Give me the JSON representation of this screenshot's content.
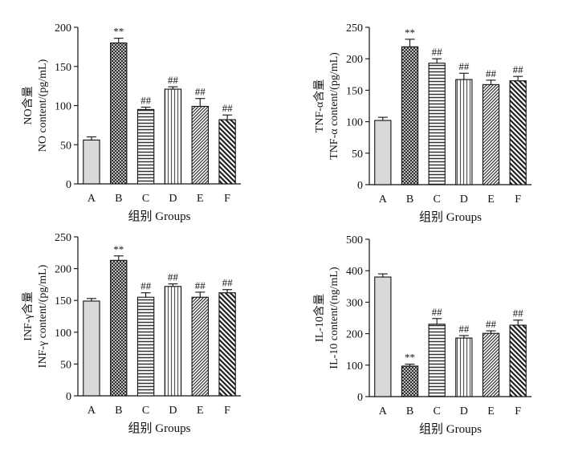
{
  "chart_data": [
    {
      "type": "bar",
      "categories": [
        "A",
        "B",
        "C",
        "D",
        "E",
        "F"
      ],
      "values": [
        56,
        180,
        95,
        121,
        99,
        82
      ],
      "errors": [
        4,
        6,
        3,
        3,
        10,
        6
      ],
      "annotations": [
        "",
        "**",
        "##",
        "##",
        "##",
        "##"
      ],
      "ylabel_cn": "NO含量",
      "ylabel_en": "NO content/(pg/mL)",
      "xlabel": "组别 Groups",
      "ylim": [
        0,
        200
      ],
      "yticks": [
        0,
        50,
        100,
        150,
        200
      ]
    },
    {
      "type": "bar",
      "categories": [
        "A",
        "B",
        "C",
        "D",
        "E",
        "F"
      ],
      "values": [
        102,
        219,
        193,
        167,
        159,
        165
      ],
      "errors": [
        5,
        12,
        7,
        10,
        7,
        7
      ],
      "annotations": [
        "",
        "**",
        "##",
        "##",
        "##",
        "##"
      ],
      "ylabel_cn": "TNF-α含量",
      "ylabel_en": "TNF-α content/(pg/mL)",
      "xlabel": "组别 Groups",
      "ylim": [
        0,
        250
      ],
      "yticks": [
        0,
        50,
        100,
        150,
        200,
        250
      ]
    },
    {
      "type": "bar",
      "categories": [
        "A",
        "B",
        "C",
        "D",
        "E",
        "F"
      ],
      "values": [
        149,
        213,
        155,
        172,
        155,
        162
      ],
      "errors": [
        4,
        7,
        7,
        4,
        8,
        5
      ],
      "annotations": [
        "",
        "**",
        "##",
        "##",
        "##",
        "##"
      ],
      "ylabel_cn": "INF-γ含量",
      "ylabel_en": "INF-γ content/(pg/mL)",
      "xlabel": "组别 Groups",
      "ylim": [
        0,
        250
      ],
      "yticks": [
        0,
        50,
        100,
        150,
        200,
        250
      ]
    },
    {
      "type": "bar",
      "categories": [
        "A",
        "B",
        "C",
        "D",
        "E",
        "F"
      ],
      "values": [
        380,
        97,
        230,
        186,
        201,
        227
      ],
      "errors": [
        10,
        6,
        18,
        8,
        8,
        16
      ],
      "annotations": [
        "",
        "**",
        "##",
        "##",
        "##",
        "##"
      ],
      "ylabel_cn": "IL-10含量",
      "ylabel_en": "IL-10 content/(ng/mL)",
      "xlabel": "组别 Groups",
      "ylim": [
        0,
        500
      ],
      "yticks": [
        0,
        100,
        200,
        300,
        400,
        500
      ]
    }
  ],
  "bar_styles": [
    {
      "pattern": "solid",
      "color": "#d9d9d9"
    },
    {
      "pattern": "crosshatch",
      "color": "#222222"
    },
    {
      "pattern": "horizontal",
      "color": "#222222"
    },
    {
      "pattern": "vertical",
      "color": "#222222"
    },
    {
      "pattern": "diagonal",
      "color": "#222222"
    },
    {
      "pattern": "diagonal-heavy",
      "color": "#222222"
    }
  ]
}
